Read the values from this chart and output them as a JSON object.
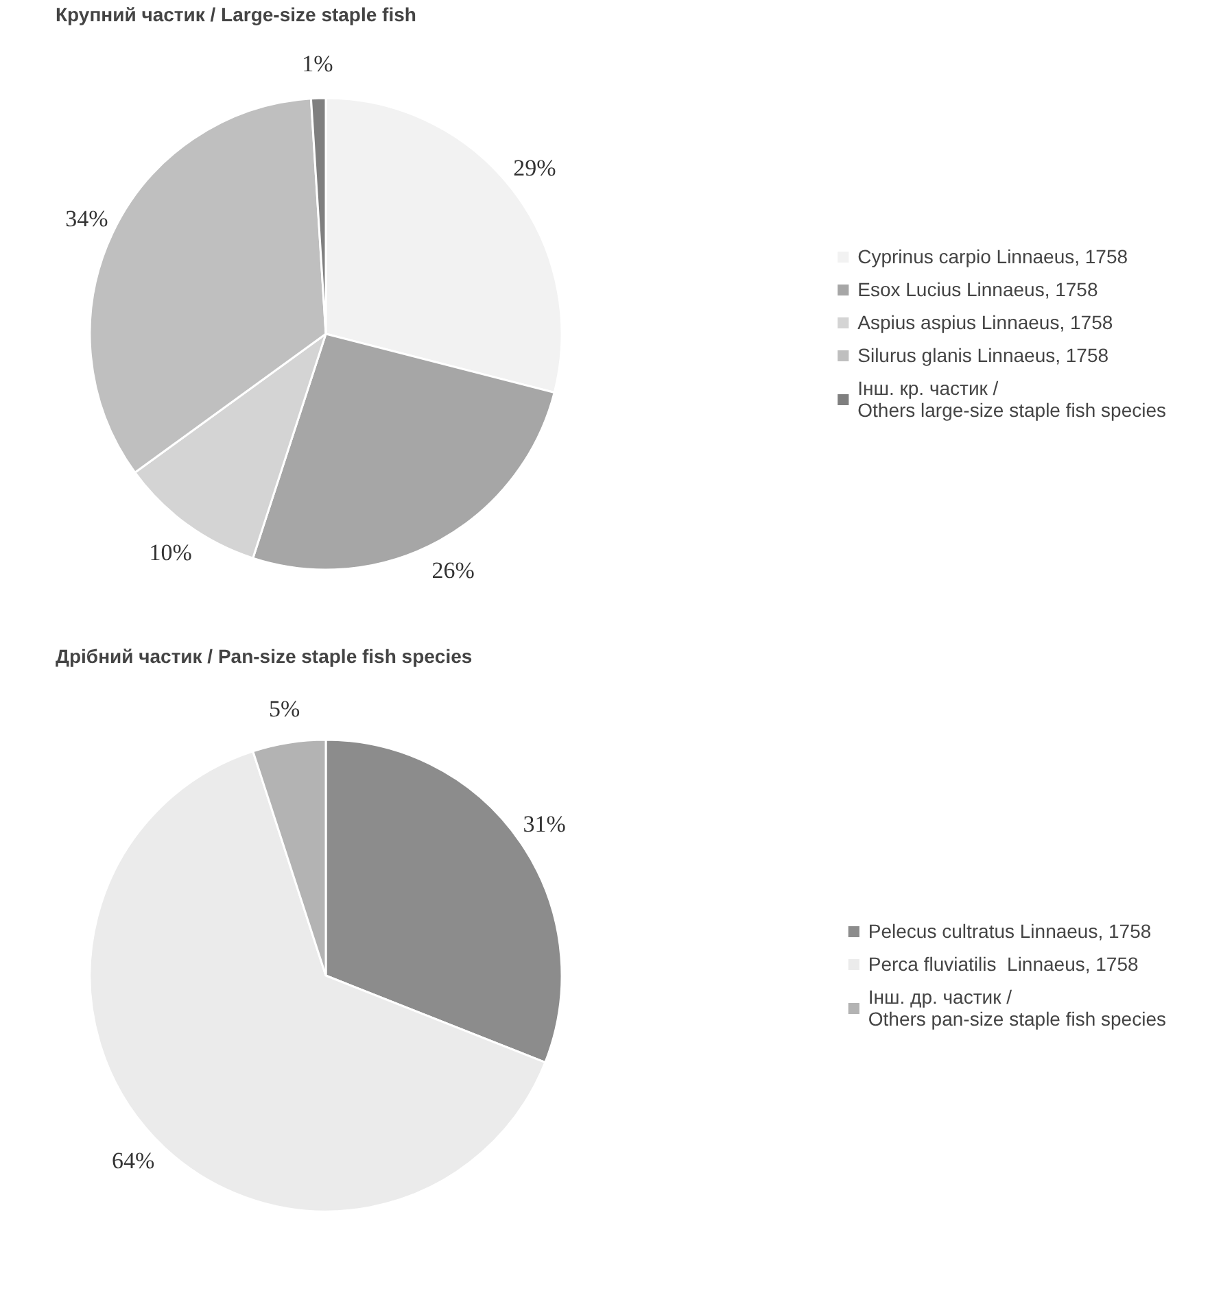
{
  "chart_data": [
    {
      "type": "pie",
      "title": "Крупний частик / Large-size staple fish",
      "categories": [
        "Cyprinus carpio Linnaeus, 1758",
        "Esox Lucius Linnaeus, 1758",
        "Aspius aspius Linnaeus, 1758",
        "Silurus glanis Linnaeus, 1758",
        "Інш. кр. частик /\nOthers large-size staple fish species"
      ],
      "values": [
        29,
        26,
        10,
        34,
        1
      ],
      "colors": [
        "#f2f2f2",
        "#a6a6a6",
        "#d4d4d4",
        "#bfbfbf",
        "#7f7f7f"
      ],
      "value_labels": [
        "29%",
        "26%",
        "10%",
        "34%",
        "1%"
      ],
      "legend": "right"
    },
    {
      "type": "pie",
      "title": "Дрібний частик / Pan-size staple fish species",
      "categories": [
        "Pelecus cultratus Linnaeus, 1758",
        "Perca fluviatilis  Linnaeus, 1758",
        "Інш. др. частик /\nOthers pan-size staple fish species"
      ],
      "values": [
        31,
        64,
        5
      ],
      "colors": [
        "#8c8c8c",
        "#ebebeb",
        "#b3b3b3"
      ],
      "value_labels": [
        "31%",
        "64%",
        "5%"
      ],
      "legend": "right"
    }
  ]
}
